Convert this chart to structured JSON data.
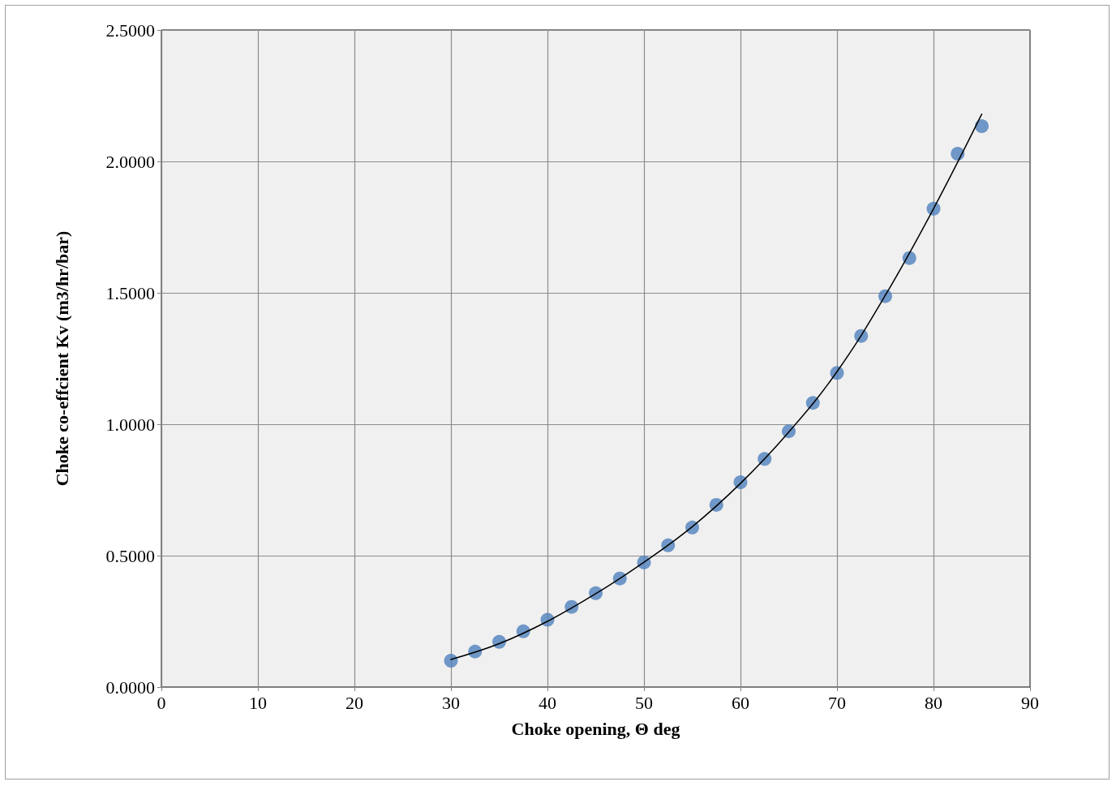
{
  "chart_data": {
    "type": "scatter",
    "xlabel": "Choke opening, Θ deg",
    "ylabel": "Choke co-effcient Kv (m3/hr/bar)",
    "x": [
      30,
      32.5,
      35,
      37.5,
      40,
      42.5,
      45,
      47.5,
      50,
      52.5,
      55,
      57.5,
      60,
      62.5,
      65,
      67.5,
      70,
      72.5,
      75,
      77.5,
      80,
      82.5,
      85
    ],
    "series": [
      {
        "color": "#4f81bd",
        "marker": "circle",
        "values": [
          0.1,
          0.135,
          0.172,
          0.212,
          0.256,
          0.305,
          0.357,
          0.413,
          0.474,
          0.539,
          0.607,
          0.693,
          0.779,
          0.868,
          0.973,
          1.081,
          1.195,
          1.336,
          1.487,
          1.632,
          1.82,
          2.029,
          2.134
        ]
      },
      {
        "type": "line",
        "color": "#000000",
        "marker": "none",
        "line_style": "solid",
        "x": [
          30,
          35,
          40,
          45,
          50,
          55,
          60,
          65,
          70,
          75,
          80,
          85
        ],
        "values": [
          0.105,
          0.165,
          0.25,
          0.355,
          0.475,
          0.61,
          0.775,
          0.97,
          1.2,
          1.49,
          1.82,
          2.18
        ]
      }
    ],
    "xlim": [
      0,
      90
    ],
    "xticks": [
      0,
      10,
      20,
      30,
      40,
      50,
      60,
      70,
      80,
      90
    ],
    "ylim": [
      0,
      2.5
    ],
    "yticks": [
      {
        "value": 0,
        "label": "0.0000"
      },
      {
        "value": 0.5,
        "label": "0.5000"
      },
      {
        "value": 1,
        "label": "1.0000"
      },
      {
        "value": 1.5,
        "label": "1.5000"
      },
      {
        "value": 2,
        "label": "2.0000"
      },
      {
        "value": 2.5,
        "label": "2.5000"
      }
    ],
    "grid": true
  }
}
